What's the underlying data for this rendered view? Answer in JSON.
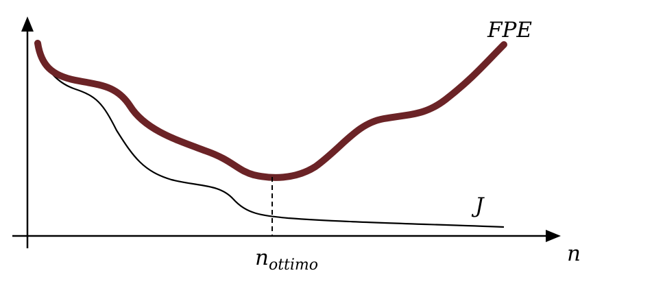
{
  "labels": {
    "fpe": "FPE",
    "j": "J",
    "n_axis": "n",
    "n_opt_base": "n",
    "n_opt_sub": "ottimo"
  },
  "colors": {
    "fpe_curve": "#6b2326",
    "j_curve": "#000000",
    "axes": "#000000"
  }
}
